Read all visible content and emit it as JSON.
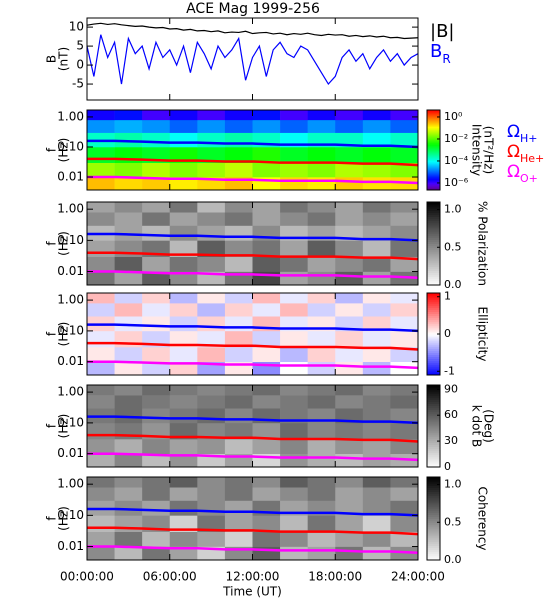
{
  "title": "ACE Mag 1999-256",
  "chart_data": [
    {
      "type": "line",
      "ylabel": [
        "B",
        "(nT)"
      ],
      "ylim": [
        -9.2,
        12.4
      ],
      "yticks": [
        10,
        5,
        0,
        -5
      ],
      "x": [
        0,
        0.5,
        1,
        1.5,
        2,
        2.5,
        3,
        3.5,
        4,
        4.5,
        5,
        5.5,
        6,
        6.5,
        7,
        7.5,
        8,
        8.5,
        9,
        9.5,
        10,
        10.5,
        11,
        11.5,
        12,
        12.5,
        13,
        13.5,
        14,
        14.5,
        15,
        15.5,
        16,
        16.5,
        17,
        17.5,
        18,
        18.5,
        19,
        19.5,
        20,
        20.5,
        21,
        21.5,
        22,
        22.5,
        23,
        23.5,
        24
      ],
      "series": [
        {
          "name": "|B|",
          "color": "#000000",
          "values": [
            10.5,
            10.8,
            11,
            10.7,
            10.9,
            10.6,
            10.4,
            10.2,
            10.3,
            10.0,
            9.8,
            9.9,
            9.5,
            9.6,
            9.2,
            9.4,
            9.0,
            9.1,
            8.8,
            9.0,
            8.5,
            8.7,
            8.6,
            8.9,
            8.3,
            8.5,
            8.6,
            8.2,
            8.4,
            8.0,
            8.3,
            8.1,
            8.4,
            8.0,
            7.8,
            8.1,
            7.9,
            8.0,
            7.6,
            7.8,
            7.5,
            7.7,
            7.4,
            7.6,
            7.2,
            7.3,
            7.0,
            7.1,
            7.2
          ]
        },
        {
          "name": "B",
          "subscript": "R",
          "color": "#0000ff",
          "values": [
            5,
            -3,
            8,
            2,
            6,
            -5,
            7,
            3,
            5,
            -1,
            6,
            2,
            4,
            0,
            5,
            -2,
            6,
            3,
            -1,
            5,
            2,
            4,
            7,
            -4,
            2,
            5,
            -3,
            4,
            6,
            3,
            2,
            5,
            4,
            1,
            -2,
            -5,
            -3,
            2,
            4,
            1,
            3,
            -1,
            2,
            4,
            1,
            3,
            0,
            2,
            3
          ]
        }
      ]
    },
    {
      "type": "heatmap",
      "ylabel": [
        "f",
        "(Hz)"
      ],
      "ylog": true,
      "ylim": [
        0.0037,
        1.7
      ],
      "yticks": [
        {
          "value": 1,
          "label": "1.00"
        },
        {
          "value": 0.1,
          "label": "0.10"
        },
        {
          "value": 0.01,
          "label": "0.01"
        }
      ],
      "x_bins": [
        0,
        2,
        4,
        6,
        8,
        10,
        12,
        14,
        16,
        18,
        20,
        22,
        24
      ],
      "y_bins": [
        0.0037,
        0.01,
        0.03,
        0.1,
        0.3,
        0.8,
        1.7
      ],
      "z": [
        [
          0.3,
          0.2,
          0.25,
          0.15,
          0.2,
          0.3,
          0.12,
          0.2,
          0.15,
          0.25,
          0.18,
          0.2
        ],
        [
          0.03,
          0.02,
          0.04,
          0.02,
          0.03,
          0.05,
          0.02,
          0.03,
          0.02,
          0.04,
          0.03,
          0.02
        ],
        [
          0.002,
          0.003,
          0.002,
          0.004,
          0.002,
          0.003,
          0.005,
          0.002,
          0.003,
          0.002,
          0.003,
          0.002
        ],
        [
          0.0002,
          0.0003,
          0.0002,
          0.0001,
          0.0002,
          0.0003,
          0.0002,
          0.0001,
          0.0002,
          0.0002,
          0.0001,
          0.0002
        ],
        [
          2e-05,
          3e-05,
          2e-05,
          1e-05,
          2e-05,
          1e-05,
          2e-05,
          1e-05,
          2e-05,
          1e-05,
          2e-05,
          1e-05
        ],
        [
          2e-06,
          3e-06,
          1e-06,
          2e-06,
          1e-06,
          2e-06,
          3e-06,
          1e-06,
          2e-06,
          1e-06,
          2e-06,
          1e-06
        ]
      ],
      "colormap": "rainbow",
      "zlog": true,
      "zlim": [
        2.3e-07,
        4.3
      ],
      "zticks": [
        {
          "value": 1,
          "label": "10⁰"
        },
        {
          "value": 0.01,
          "label": "10⁻²"
        },
        {
          "value": 0.0001,
          "label": "10⁻⁴"
        },
        {
          "value": 1e-06,
          "label": "10⁻⁶"
        }
      ],
      "zlabel": [
        "Intensity",
        "(nT²/Hz)"
      ],
      "x": [
        0,
        2,
        4,
        6,
        8,
        10,
        12,
        14,
        16,
        18,
        20,
        22,
        24
      ],
      "series": [
        {
          "name": "Ω",
          "subscript": "H+",
          "color": "#0000ff",
          "values": [
            0.16,
            0.16,
            0.15,
            0.14,
            0.14,
            0.13,
            0.13,
            0.12,
            0.12,
            0.12,
            0.11,
            0.11,
            0.1
          ]
        },
        {
          "name": "Ω",
          "subscript": "He+",
          "color": "#ff0000",
          "values": [
            0.04,
            0.04,
            0.038,
            0.035,
            0.035,
            0.033,
            0.033,
            0.03,
            0.03,
            0.03,
            0.028,
            0.028,
            0.025
          ]
        },
        {
          "name": "Ω",
          "subscript": "O+",
          "color": "#ff00ff",
          "values": [
            0.01,
            0.01,
            0.0094,
            0.0088,
            0.0088,
            0.0081,
            0.0081,
            0.0075,
            0.0075,
            0.0075,
            0.0069,
            0.0069,
            0.0063
          ]
        }
      ]
    },
    {
      "type": "heatmap",
      "ylabel": [
        "f",
        "(Hz)"
      ],
      "ylog": true,
      "ylim": [
        0.0037,
        1.7
      ],
      "yticks": [
        {
          "value": 1,
          "label": "1.00"
        },
        {
          "value": 0.1,
          "label": "0.10"
        },
        {
          "value": 0.01,
          "label": "0.01"
        }
      ],
      "x_bins": [
        0,
        2,
        4,
        6,
        8,
        10,
        12,
        14,
        16,
        18,
        20,
        22,
        24
      ],
      "y_bins": [
        0.0037,
        0.01,
        0.03,
        0.1,
        0.3,
        0.8,
        1.7
      ],
      "z": [
        [
          0.6,
          0.4,
          0.7,
          0.5,
          0.3,
          0.6,
          0.8,
          0.4,
          0.5,
          0.7,
          0.4,
          0.6
        ],
        [
          0.5,
          0.7,
          0.4,
          0.6,
          0.5,
          0.3,
          0.7,
          0.6,
          0.4,
          0.5,
          0.6,
          0.4
        ],
        [
          0.4,
          0.5,
          0.6,
          0.3,
          0.7,
          0.5,
          0.6,
          0.4,
          0.7,
          0.5,
          0.3,
          0.6
        ],
        [
          0.3,
          0.4,
          0.3,
          0.5,
          0.4,
          0.3,
          0.5,
          0.3,
          0.4,
          0.3,
          0.4,
          0.5
        ],
        [
          0.5,
          0.4,
          0.6,
          0.4,
          0.5,
          0.6,
          0.4,
          0.5,
          0.6,
          0.4,
          0.5,
          0.4
        ],
        [
          0.4,
          0.5,
          0.4,
          0.6,
          0.3,
          0.5,
          0.4,
          0.6,
          0.5,
          0.4,
          0.6,
          0.5
        ]
      ],
      "colormap": "gray",
      "zlim": [
        0,
        1.1
      ],
      "zticks": [
        {
          "value": 1,
          "label": "1.0"
        },
        {
          "value": 0.5,
          "label": "0.5"
        },
        {
          "value": 0,
          "label": "0.0"
        }
      ],
      "zlabel": [
        "% Polarization"
      ]
    },
    {
      "type": "heatmap",
      "ylabel": [
        "f",
        "(Hz)"
      ],
      "ylog": true,
      "ylim": [
        0.0037,
        1.7
      ],
      "yticks": [
        {
          "value": 1,
          "label": "1.00"
        },
        {
          "value": 0.1,
          "label": "0.10"
        },
        {
          "value": 0.01,
          "label": "0.01"
        }
      ],
      "x_bins": [
        0,
        2,
        4,
        6,
        8,
        10,
        12,
        14,
        16,
        18,
        20,
        22,
        24
      ],
      "y_bins": [
        0.0037,
        0.01,
        0.03,
        0.1,
        0.3,
        0.8,
        1.7
      ],
      "z": [
        [
          -0.3,
          0.1,
          -0.2,
          0.2,
          -0.4,
          0.1,
          -0.5,
          0.0,
          -0.2,
          0.1,
          -0.3,
          0.0
        ],
        [
          0.1,
          -0.2,
          0.2,
          -0.1,
          0.3,
          -0.2,
          0.1,
          -0.3,
          0.2,
          -0.1,
          0.1,
          -0.2
        ],
        [
          -0.1,
          0.2,
          -0.2,
          0.1,
          -0.1,
          0.3,
          -0.2,
          0.1,
          -0.1,
          0.2,
          -0.1,
          0.1
        ],
        [
          0.2,
          -0.1,
          0.1,
          -0.2,
          0.2,
          -0.1,
          0.3,
          -0.1,
          0.1,
          -0.2,
          0.2,
          -0.1
        ],
        [
          -0.2,
          0.3,
          -0.1,
          0.2,
          -0.3,
          0.2,
          -0.1,
          0.3,
          -0.2,
          0.1,
          -0.2,
          0.2
        ],
        [
          0.3,
          -0.2,
          0.2,
          -0.3,
          0.1,
          -0.2,
          0.3,
          -0.1,
          0.2,
          -0.3,
          0.1,
          -0.1
        ]
      ],
      "colormap": "bwr",
      "zlim": [
        -1.1,
        1.1
      ],
      "zticks": [
        1,
        0,
        -1
      ],
      "zlabel": [
        "Ellipticity"
      ]
    },
    {
      "type": "heatmap",
      "ylabel": [
        "f",
        "(Hz)"
      ],
      "ylog": true,
      "ylim": [
        0.0037,
        1.7
      ],
      "yticks": [
        {
          "value": 1,
          "label": "1.00"
        },
        {
          "value": 0.1,
          "label": "0.10"
        },
        {
          "value": 0.01,
          "label": "0.01"
        }
      ],
      "x_bins": [
        0,
        2,
        4,
        6,
        8,
        10,
        12,
        14,
        16,
        18,
        20,
        22,
        24
      ],
      "y_bins": [
        0.0037,
        0.01,
        0.03,
        0.1,
        0.3,
        0.8,
        1.7
      ],
      "z": [
        [
          30,
          45,
          25,
          40,
          20,
          35,
          15,
          40,
          30,
          25,
          35,
          30
        ],
        [
          40,
          30,
          45,
          35,
          40,
          25,
          35,
          45,
          30,
          40,
          35,
          45
        ],
        [
          45,
          50,
          40,
          55,
          45,
          50,
          40,
          55,
          45,
          50,
          45,
          50
        ],
        [
          50,
          55,
          45,
          50,
          55,
          45,
          55,
          50,
          45,
          55,
          50,
          45
        ],
        [
          45,
          55,
          50,
          45,
          50,
          55,
          45,
          50,
          55,
          45,
          50,
          55
        ],
        [
          50,
          45,
          55,
          50,
          45,
          50,
          55,
          45,
          50,
          55,
          45,
          50
        ]
      ],
      "colormap": "gray",
      "zlim": [
        0,
        95
      ],
      "zticks": [
        90,
        60,
        30,
        0
      ],
      "zlabel": [
        "k dot B",
        "(Deg)"
      ]
    },
    {
      "type": "heatmap",
      "ylabel": [
        "f",
        "(Hz)"
      ],
      "ylog": true,
      "ylim": [
        0.0037,
        1.7
      ],
      "yticks": [
        {
          "value": 1,
          "label": "1.00"
        },
        {
          "value": 0.1,
          "label": "0.10"
        },
        {
          "value": 0.01,
          "label": "0.01"
        }
      ],
      "x_bins": [
        0,
        2,
        4,
        6,
        8,
        10,
        12,
        14,
        16,
        18,
        20,
        22,
        24
      ],
      "y_bins": [
        0.0037,
        0.01,
        0.03,
        0.1,
        0.3,
        0.8,
        1.7
      ],
      "z": [
        [
          0.5,
          0.3,
          0.6,
          0.4,
          0.2,
          0.5,
          0.7,
          0.3,
          0.4,
          0.6,
          0.3,
          0.5
        ],
        [
          0.4,
          0.6,
          0.3,
          0.5,
          0.4,
          0.2,
          0.6,
          0.5,
          0.3,
          0.4,
          0.5,
          0.3
        ],
        [
          0.3,
          0.4,
          0.5,
          0.2,
          0.6,
          0.4,
          0.5,
          0.3,
          0.6,
          0.4,
          0.2,
          0.5
        ],
        [
          0.4,
          0.5,
          0.4,
          0.6,
          0.5,
          0.4,
          0.6,
          0.4,
          0.5,
          0.4,
          0.5,
          0.6
        ],
        [
          0.5,
          0.4,
          0.6,
          0.4,
          0.5,
          0.6,
          0.4,
          0.5,
          0.6,
          0.4,
          0.5,
          0.4
        ],
        [
          0.6,
          0.5,
          0.6,
          0.7,
          0.5,
          0.6,
          0.5,
          0.7,
          0.6,
          0.5,
          0.7,
          0.6
        ]
      ],
      "colormap": "gray",
      "zlim": [
        0,
        1.1
      ],
      "zticks": [
        {
          "value": 1,
          "label": "1.0"
        },
        {
          "value": 0.5,
          "label": "0.5"
        },
        {
          "value": 0,
          "label": "0.0"
        }
      ],
      "zlabel": [
        "Coherency"
      ],
      "xlim": [
        0,
        24
      ],
      "xticks": [
        {
          "value": 0,
          "label": "00:00:00"
        },
        {
          "value": 6,
          "label": "06:00:00"
        },
        {
          "value": 12,
          "label": "12:00:00"
        },
        {
          "value": 18,
          "label": "18:00:00"
        },
        {
          "value": 24,
          "label": "24:00:00"
        }
      ],
      "xlabel": "Time (UT)"
    }
  ]
}
